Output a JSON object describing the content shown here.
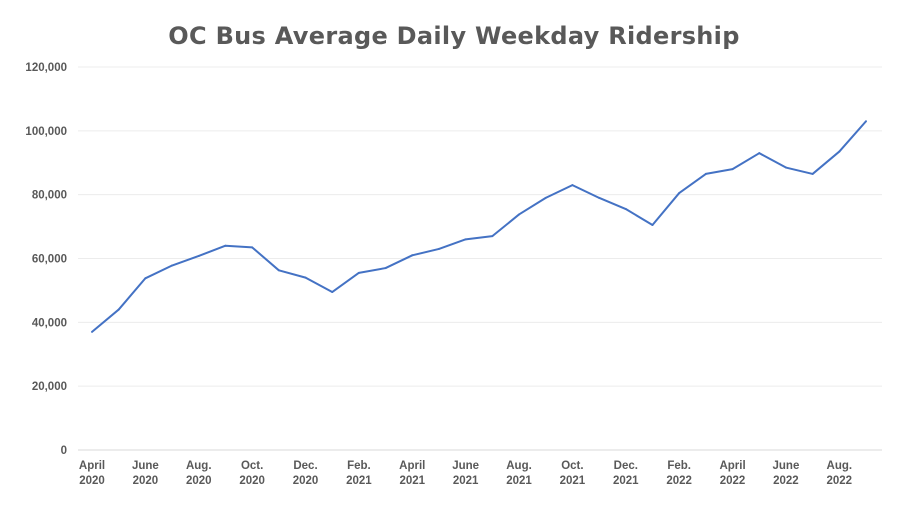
{
  "chart_data": {
    "type": "line",
    "title": "OC Bus Average Daily Weekday Ridership",
    "xlabel": "",
    "ylabel": "",
    "ylim": [
      0,
      120000
    ],
    "yticks": [
      "0",
      "20,000",
      "40,000",
      "60,000",
      "80,000",
      "100,000",
      "120,000"
    ],
    "grid": true,
    "line_color": "#4472C4",
    "x": [
      "Apr 2020",
      "May 2020",
      "Jun 2020",
      "Jul 2020",
      "Aug 2020",
      "Sep 2020",
      "Oct 2020",
      "Nov 2020",
      "Dec 2020",
      "Jan 2021",
      "Feb 2021",
      "Mar 2021",
      "Apr 2021",
      "May 2021",
      "Jun 2021",
      "Jul 2021",
      "Aug 2021",
      "Sep 2021",
      "Oct 2021",
      "Nov 2021",
      "Dec 2021",
      "Jan 2022",
      "Feb 2022",
      "Mar 2022",
      "Apr 2022",
      "May 2022",
      "Jun 2022",
      "Jul 2022",
      "Aug 2022",
      "Sep 2022"
    ],
    "xtick_labels": [
      [
        "April",
        "2020"
      ],
      [
        "June",
        "2020"
      ],
      [
        "Aug.",
        "2020"
      ],
      [
        "Oct.",
        "2020"
      ],
      [
        "Dec.",
        "2020"
      ],
      [
        "Feb.",
        "2021"
      ],
      [
        "April",
        "2021"
      ],
      [
        "June",
        "2021"
      ],
      [
        "Aug.",
        "2021"
      ],
      [
        "Oct.",
        "2021"
      ],
      [
        "Dec.",
        "2021"
      ],
      [
        "Feb.",
        "2022"
      ],
      [
        "April",
        "2022"
      ],
      [
        "June",
        "2022"
      ],
      [
        "Aug.",
        "2022"
      ]
    ],
    "values": [
      37000,
      44000,
      53800,
      57800,
      60800,
      64000,
      63500,
      56300,
      54000,
      49500,
      55500,
      57000,
      61000,
      63000,
      66000,
      67000,
      73800,
      79000,
      83000,
      79000,
      75500,
      70500,
      80500,
      86500,
      88000,
      93000,
      88500,
      86500,
      93500,
      103000
    ]
  }
}
